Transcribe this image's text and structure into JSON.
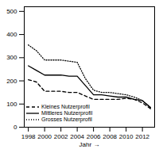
{
  "chart_data": {
    "type": "line",
    "x_label": "Jahr",
    "x": [
      1998,
      1999,
      2000,
      2001,
      2002,
      2003,
      2004,
      2005,
      2006,
      2007,
      2008,
      2009,
      2010,
      2011,
      2012,
      2013
    ],
    "series": [
      {
        "name": "Kleines Nutzerprofil",
        "color": "#000000",
        "line_style": "dashed",
        "values": [
          205,
          195,
          155,
          155,
          155,
          150,
          150,
          135,
          120,
          120,
          120,
          120,
          125,
          120,
          105,
          80
        ]
      },
      {
        "name": "Mittleres Nutzerprofil",
        "color": "#000000",
        "line_style": "solid",
        "values": [
          265,
          245,
          225,
          225,
          225,
          220,
          220,
          180,
          140,
          140,
          135,
          130,
          130,
          120,
          115,
          85
        ]
      },
      {
        "name": "Grosses Nutzerprofil",
        "color": "#000000",
        "line_style": "dotted",
        "values": [
          355,
          330,
          290,
          290,
          290,
          285,
          280,
          210,
          160,
          150,
          150,
          145,
          140,
          130,
          115,
          85
        ]
      }
    ],
    "xlim": [
      1997.5,
      2013.5
    ],
    "xticks": [
      1998,
      2000,
      2002,
      2004,
      2006,
      2008,
      2010,
      2012
    ],
    "ylim": [
      0,
      520
    ],
    "yticks": [
      0,
      100,
      200,
      300,
      400,
      500
    ],
    "grid": false,
    "legend": "bottom-left"
  }
}
